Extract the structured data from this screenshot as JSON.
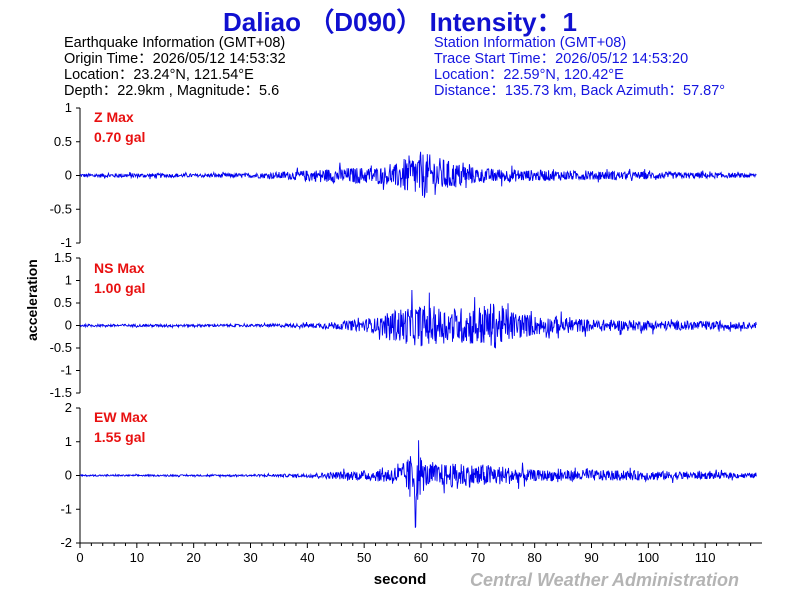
{
  "title": "Daliao （D090） Intensity：1",
  "earthquake_info": [
    "Earthquake Information  (GMT+08)",
    "Origin Time：2026/05/12 14:53:32",
    "Location：23.24°N, 121.54°E",
    "Depth：22.9km , Magnitude：5.6"
  ],
  "station_info": [
    "Station Information  (GMT+08)",
    "Trace Start Time：2026/05/12 14:53:20",
    "Location：22.59°N, 120.42°E",
    "Distance：135.73 km, Back Azimuth：57.87°"
  ],
  "credit": "Central Weather Administration",
  "colors": {
    "title": "#1010d0",
    "trace": "#0000ee",
    "max_label": "#e81010",
    "station": "#1515e0"
  },
  "chart_data": {
    "type": "line",
    "xlabel": "second",
    "ylabel": "acceleration",
    "xlim": [
      0,
      120
    ],
    "xticks": [
      0,
      10,
      20,
      30,
      40,
      50,
      60,
      70,
      80,
      90,
      100,
      110
    ],
    "panels": [
      {
        "name": "Z",
        "max_label": "Z Max",
        "max_value": "0.70 gal",
        "ylim": [
          -1,
          1
        ],
        "yticks": [
          -1,
          -0.5,
          0,
          0.5,
          1
        ],
        "envelope": [
          [
            0,
            0.05
          ],
          [
            10,
            0.06
          ],
          [
            20,
            0.05
          ],
          [
            30,
            0.06
          ],
          [
            38,
            0.12
          ],
          [
            45,
            0.2
          ],
          [
            55,
            0.25
          ],
          [
            58,
            0.55
          ],
          [
            60,
            0.65
          ],
          [
            63,
            0.5
          ],
          [
            66,
            0.35
          ],
          [
            70,
            0.2
          ],
          [
            80,
            0.15
          ],
          [
            90,
            0.12
          ],
          [
            100,
            0.1
          ],
          [
            110,
            0.08
          ],
          [
            119,
            0.05
          ]
        ]
      },
      {
        "name": "NS",
        "max_label": "NS Max",
        "max_value": "1.00 gal",
        "ylim": [
          -1.5,
          1.5
        ],
        "yticks": [
          -1.5,
          -1,
          -0.5,
          0,
          0.5,
          1,
          1.5
        ],
        "envelope": [
          [
            0,
            0.05
          ],
          [
            10,
            0.05
          ],
          [
            20,
            0.05
          ],
          [
            30,
            0.05
          ],
          [
            40,
            0.08
          ],
          [
            45,
            0.15
          ],
          [
            52,
            0.3
          ],
          [
            56,
            0.7
          ],
          [
            60,
            0.85
          ],
          [
            65,
            0.7
          ],
          [
            70,
            0.8
          ],
          [
            73,
            0.95
          ],
          [
            76,
            0.6
          ],
          [
            80,
            0.4
          ],
          [
            90,
            0.25
          ],
          [
            100,
            0.2
          ],
          [
            110,
            0.18
          ],
          [
            119,
            0.12
          ]
        ]
      },
      {
        "name": "EW",
        "max_label": "EW Max",
        "max_value": "1.55 gal",
        "ylim": [
          -2,
          2
        ],
        "yticks": [
          -2,
          -1,
          0,
          1,
          2
        ],
        "envelope": [
          [
            0,
            0.04
          ],
          [
            10,
            0.04
          ],
          [
            20,
            0.04
          ],
          [
            30,
            0.05
          ],
          [
            40,
            0.1
          ],
          [
            45,
            0.2
          ],
          [
            52,
            0.3
          ],
          [
            57,
            0.6
          ],
          [
            59,
            1.55
          ],
          [
            61,
            0.6
          ],
          [
            66,
            0.65
          ],
          [
            72,
            0.6
          ],
          [
            76,
            0.45
          ],
          [
            80,
            0.3
          ],
          [
            90,
            0.3
          ],
          [
            100,
            0.25
          ],
          [
            110,
            0.2
          ],
          [
            119,
            0.12
          ]
        ]
      }
    ]
  }
}
